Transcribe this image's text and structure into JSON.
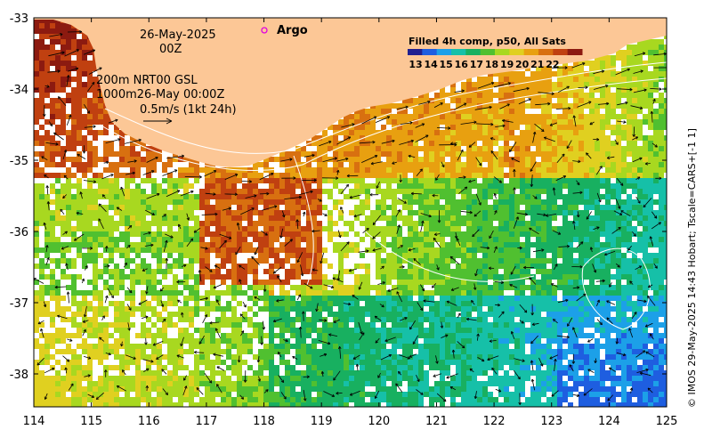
{
  "map": {
    "date_label": "26-May-2025",
    "time_label": "00Z",
    "legend_marker_label": "Argo",
    "isobath_label": "200m  NRT00 GSL",
    "isobath2_label": "1000m26-May 00:00Z",
    "vector_scale_label": "0.5m/s (1kt 24h)",
    "colorbar_title": "Filled 4h comp, p50, All Sats",
    "colorbar_ticks": [
      "13",
      "14",
      "15",
      "16",
      "17",
      "18",
      "19",
      "20",
      "21",
      "22"
    ],
    "credit": "© IMOS 29-May-2025 14:43 Hobart; Tscale=CARS+[-1 1]",
    "x_ticks": [
      "114",
      "115",
      "116",
      "117",
      "118",
      "119",
      "120",
      "121",
      "122",
      "123",
      "124",
      "125"
    ],
    "y_ticks": [
      "-33",
      "-34",
      "-35",
      "-36",
      "-37",
      "-38"
    ],
    "colors": {
      "land": "#fcc796",
      "argo": "#e000e0",
      "contour": "#ffffff",
      "palette": [
        "#202090",
        "#1e5ee0",
        "#1ca0e8",
        "#16c0a8",
        "#18b060",
        "#50c030",
        "#a8d820",
        "#e0d020",
        "#e8a010",
        "#d87010",
        "#c04010",
        "#8c1a10"
      ]
    }
  }
}
